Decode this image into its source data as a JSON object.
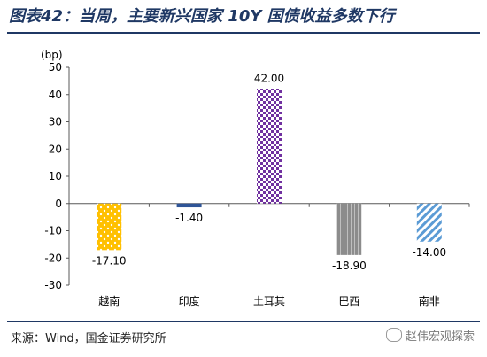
{
  "title": "图表42：当周，主要新兴国家 10Y 国债收益多数下行",
  "source": "来源：Wind，国金证券研究所",
  "watermark": "赵伟宏观探索",
  "chart_data": {
    "type": "bar",
    "ylabel": "(bp)",
    "ylim": [
      -30,
      50
    ],
    "yticks": [
      -30,
      -20,
      -10,
      0,
      10,
      20,
      30,
      40,
      50
    ],
    "categories": [
      "越南",
      "印度",
      "土耳其",
      "巴西",
      "南非"
    ],
    "values": [
      -17.1,
      -1.4,
      42.0,
      -18.9,
      -14.0
    ],
    "value_labels": [
      "-17.10",
      "-1.40",
      "42.00",
      "-18.90",
      "-14.00"
    ],
    "bar_colors": [
      "#ffc000",
      "#2f5597",
      "#7030a0",
      "#8c8c8c",
      "#5b9bd5"
    ],
    "bar_patterns": [
      "dots",
      "solid",
      "checker",
      "vertical-lines",
      "diagonal"
    ],
    "grid": false,
    "legend": "none"
  }
}
